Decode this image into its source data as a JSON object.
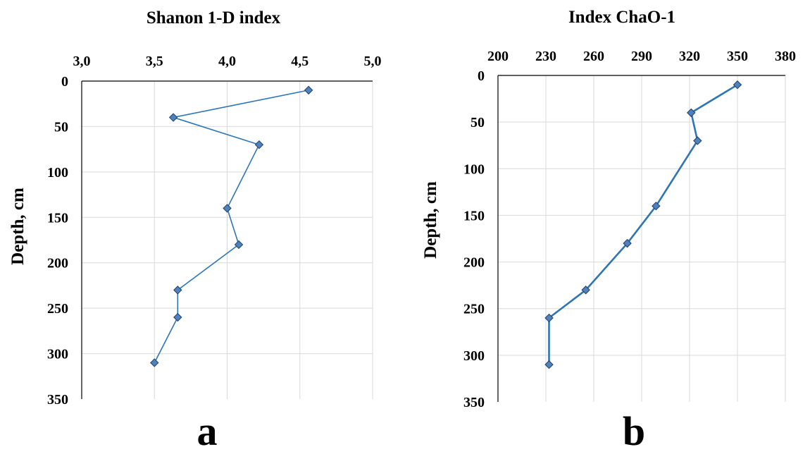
{
  "chart_data": [
    {
      "type": "line",
      "title": "Shanon 1-D index",
      "ylabel": "Depth, cm",
      "xlabel": "",
      "x_axis_position": "top",
      "y_axis_inverted": true,
      "xlim": [
        3.0,
        5.0
      ],
      "ylim": [
        0,
        350
      ],
      "x_ticks": [
        3.0,
        3.5,
        4.0,
        4.5,
        5.0
      ],
      "x_tick_labels": [
        "3,0",
        "3,5",
        "4,0",
        "4,5",
        "5,0"
      ],
      "y_ticks": [
        0,
        50,
        100,
        150,
        200,
        250,
        300,
        350
      ],
      "y_tick_labels": [
        "0",
        "50",
        "100",
        "150",
        "200",
        "250",
        "300",
        "350"
      ],
      "grid": true,
      "series": [
        {
          "color": "#2e75b6",
          "marker_color": "#4f81bd",
          "marker": "diamond",
          "points": [
            {
              "x": 4.56,
              "y": 10
            },
            {
              "x": 3.63,
              "y": 40
            },
            {
              "x": 4.22,
              "y": 70
            },
            {
              "x": 4.0,
              "y": 140
            },
            {
              "x": 4.08,
              "y": 180
            },
            {
              "x": 3.66,
              "y": 230
            },
            {
              "x": 3.66,
              "y": 260
            },
            {
              "x": 3.5,
              "y": 310
            }
          ]
        }
      ],
      "panel_letter": "a"
    },
    {
      "type": "line",
      "title": "Index  ChaO-1",
      "ylabel": "Depth, cm",
      "xlabel": "",
      "x_axis_position": "top",
      "y_axis_inverted": true,
      "xlim": [
        200,
        380
      ],
      "ylim": [
        0,
        350
      ],
      "x_ticks": [
        200,
        230,
        260,
        290,
        320,
        350,
        380
      ],
      "x_tick_labels": [
        "200",
        "230",
        "260",
        "290",
        "320",
        "350",
        "380"
      ],
      "y_ticks": [
        0,
        50,
        100,
        150,
        200,
        250,
        300,
        350
      ],
      "y_tick_labels": [
        "0",
        "50",
        "100",
        "150",
        "200",
        "250",
        "300",
        "350"
      ],
      "grid": true,
      "series": [
        {
          "color": "#2e75b6",
          "marker_color": "#4f81bd",
          "marker": "diamond",
          "points": [
            {
              "x": 350,
              "y": 10
            },
            {
              "x": 321,
              "y": 40
            },
            {
              "x": 325,
              "y": 70
            },
            {
              "x": 299,
              "y": 140
            },
            {
              "x": 281,
              "y": 180
            },
            {
              "x": 255,
              "y": 230
            },
            {
              "x": 232,
              "y": 260
            },
            {
              "x": 232,
              "y": 310
            }
          ]
        }
      ],
      "panel_letter": "b"
    }
  ]
}
